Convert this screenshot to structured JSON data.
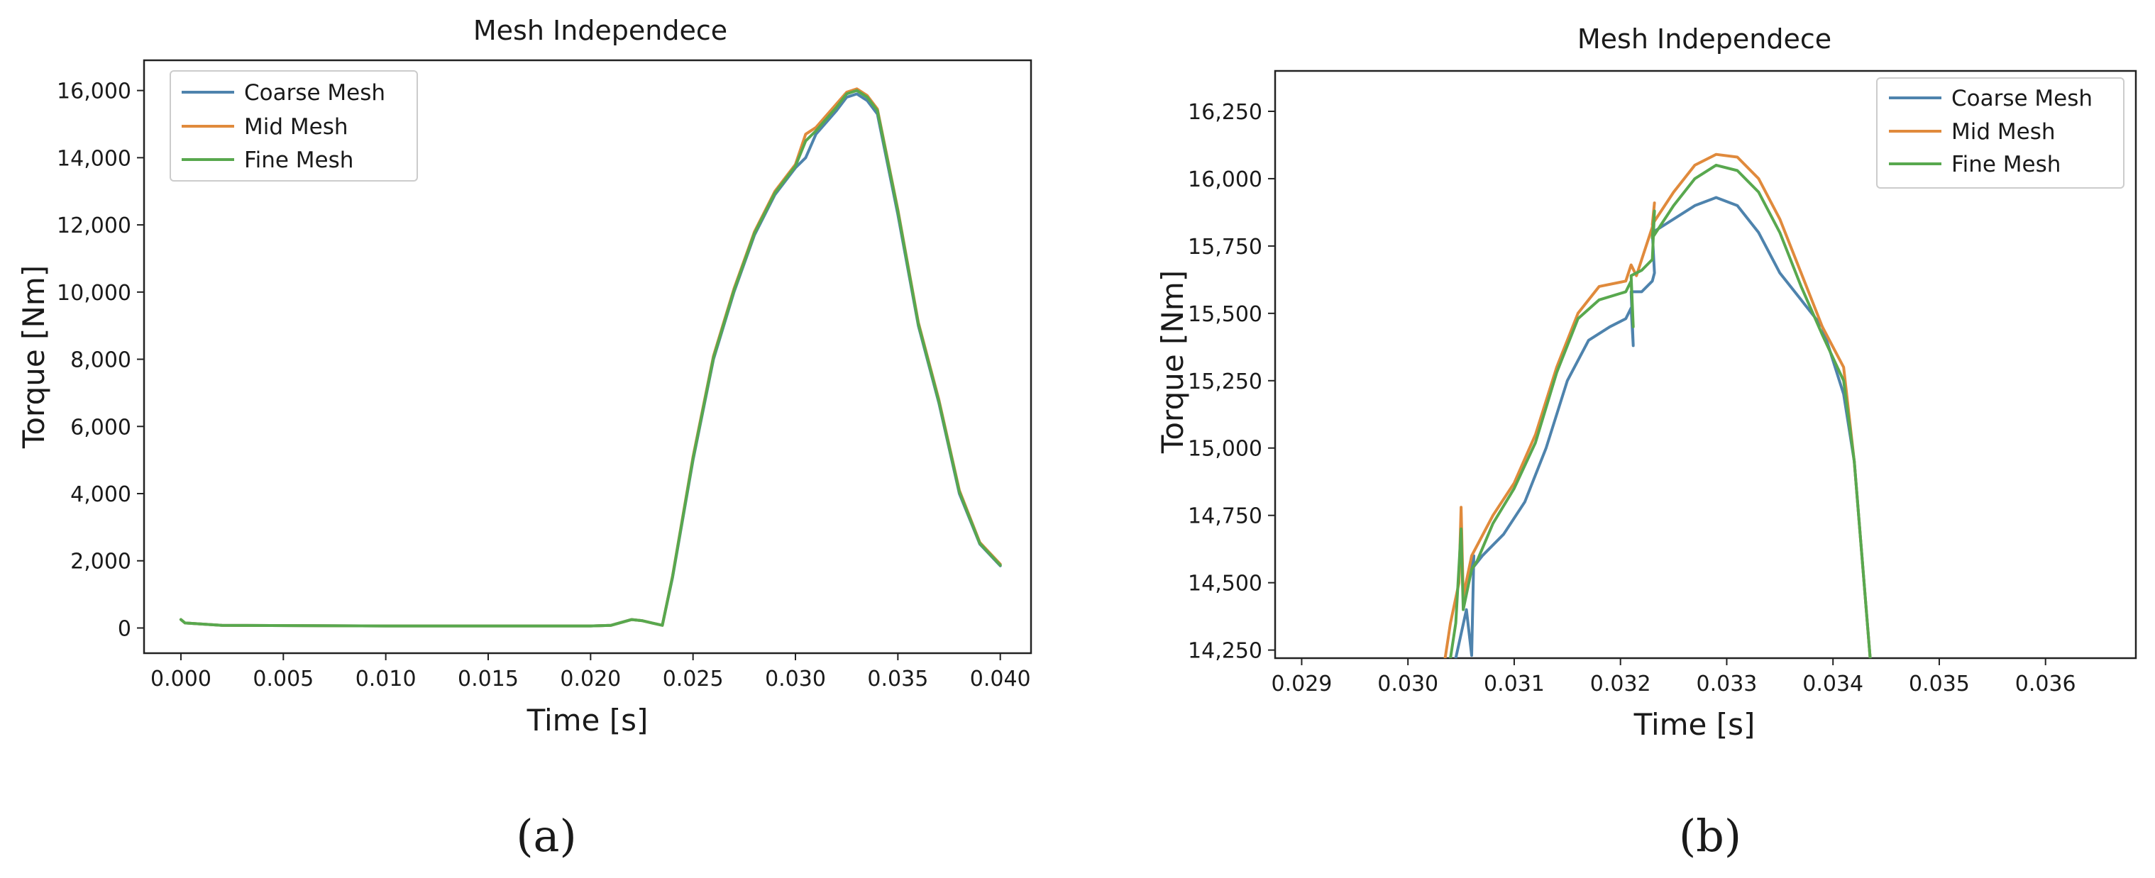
{
  "colors": {
    "coarse": "#4e83ad",
    "mid": "#e08a3c",
    "fine": "#58a84e"
  },
  "chart_data": [
    {
      "type": "line",
      "panel_label": "(a)",
      "title": "Mesh Independece",
      "xlabel": "Time [s]",
      "ylabel": "Torque [Nm]",
      "xlim": [
        -0.0018,
        0.0415
      ],
      "ylim": [
        -750,
        16900
      ],
      "grid": false,
      "legend_position": "top-left",
      "x_ticks": [
        0.0,
        0.005,
        0.01,
        0.015,
        0.02,
        0.025,
        0.03,
        0.035,
        0.04
      ],
      "x_tick_labels": [
        "0.000",
        "0.005",
        "0.010",
        "0.015",
        "0.020",
        "0.025",
        "0.030",
        "0.035",
        "0.040"
      ],
      "y_ticks": [
        0,
        2000,
        4000,
        6000,
        8000,
        10000,
        12000,
        14000,
        16000
      ],
      "y_tick_labels": [
        "0",
        "2,000",
        "4,000",
        "6,000",
        "8,000",
        "10,000",
        "12,000",
        "14,000",
        "16,000"
      ],
      "series": [
        {
          "name": "Coarse Mesh",
          "color_key": "coarse",
          "x": [
            0.0,
            0.0002,
            0.002,
            0.01,
            0.02,
            0.021,
            0.022,
            0.0225,
            0.023,
            0.0235,
            0.024,
            0.025,
            0.026,
            0.027,
            0.028,
            0.029,
            0.03,
            0.0305,
            0.031,
            0.032,
            0.0325,
            0.033,
            0.0335,
            0.034,
            0.035,
            0.036,
            0.037,
            0.038,
            0.039,
            0.04
          ],
          "y": [
            250,
            150,
            80,
            60,
            60,
            80,
            250,
            220,
            150,
            80,
            1500,
            5000,
            8000,
            10000,
            11700,
            12900,
            13700,
            14000,
            14700,
            15400,
            15800,
            15900,
            15700,
            15300,
            12300,
            9000,
            6700,
            4000,
            2500,
            1850
          ]
        },
        {
          "name": "Mid Mesh",
          "color_key": "mid",
          "x": [
            0.0,
            0.0002,
            0.002,
            0.01,
            0.02,
            0.021,
            0.022,
            0.0225,
            0.023,
            0.0235,
            0.024,
            0.025,
            0.026,
            0.027,
            0.028,
            0.029,
            0.03,
            0.0305,
            0.031,
            0.032,
            0.0325,
            0.033,
            0.0335,
            0.034,
            0.035,
            0.036,
            0.037,
            0.038,
            0.039,
            0.04
          ],
          "y": [
            250,
            150,
            80,
            60,
            60,
            80,
            250,
            220,
            150,
            80,
            1550,
            5100,
            8100,
            10100,
            11800,
            13000,
            13800,
            14700,
            14900,
            15600,
            15950,
            16050,
            15850,
            15450,
            12450,
            9100,
            6800,
            4100,
            2550,
            1900
          ]
        },
        {
          "name": "Fine Mesh",
          "color_key": "fine",
          "x": [
            0.0,
            0.0002,
            0.002,
            0.01,
            0.02,
            0.021,
            0.022,
            0.0225,
            0.023,
            0.0235,
            0.024,
            0.025,
            0.026,
            0.027,
            0.028,
            0.029,
            0.03,
            0.0305,
            0.031,
            0.032,
            0.0325,
            0.033,
            0.0335,
            0.034,
            0.035,
            0.036,
            0.037,
            0.038,
            0.039,
            0.04
          ],
          "y": [
            250,
            150,
            80,
            60,
            60,
            80,
            250,
            220,
            150,
            80,
            1530,
            5050,
            8050,
            10050,
            11750,
            12950,
            13750,
            14500,
            14800,
            15500,
            15900,
            16000,
            15800,
            15400,
            12400,
            9050,
            6750,
            4050,
            2520,
            1870
          ]
        }
      ]
    },
    {
      "type": "line",
      "panel_label": "(b)",
      "title": "Mesh Independece",
      "xlabel": "Time [s]",
      "ylabel": "Torque [Nm]",
      "xlim": [
        0.02875,
        0.03685
      ],
      "ylim": [
        14220,
        16400
      ],
      "grid": false,
      "legend_position": "top-right",
      "x_ticks": [
        0.029,
        0.03,
        0.031,
        0.032,
        0.033,
        0.034,
        0.035,
        0.036
      ],
      "x_tick_labels": [
        "0.029",
        "0.030",
        "0.031",
        "0.032",
        "0.033",
        "0.034",
        "0.035",
        "0.036"
      ],
      "y_ticks": [
        14250,
        14500,
        14750,
        15000,
        15250,
        15500,
        15750,
        16000,
        16250
      ],
      "y_tick_labels": [
        "14,250",
        "14,500",
        "14,750",
        "15,000",
        "15,250",
        "15,500",
        "15,750",
        "16,000",
        "16,250"
      ],
      "series": [
        {
          "name": "Coarse Mesh",
          "color_key": "coarse",
          "x": [
            0.03045,
            0.03055,
            0.0306,
            0.03062,
            0.0306,
            0.0307,
            0.0309,
            0.0311,
            0.0313,
            0.0315,
            0.0317,
            0.0319,
            0.03205,
            0.0321,
            0.03212,
            0.0321,
            0.0322,
            0.0323,
            0.03232,
            0.0323,
            0.0325,
            0.0327,
            0.0329,
            0.0331,
            0.0333,
            0.0335,
            0.0337,
            0.0339,
            0.0341,
            0.0342,
            0.03435
          ],
          "y": [
            14220,
            14400,
            14230,
            14600,
            14550,
            14600,
            14680,
            14800,
            15000,
            15250,
            15400,
            15450,
            15480,
            15520,
            15380,
            15580,
            15580,
            15620,
            15650,
            15800,
            15850,
            15900,
            15930,
            15900,
            15800,
            15650,
            15550,
            15450,
            15200,
            14950,
            14220
          ]
        },
        {
          "name": "Mid Mesh",
          "color_key": "mid",
          "x": [
            0.03035,
            0.0304,
            0.03048,
            0.0305,
            0.03052,
            0.0306,
            0.0308,
            0.031,
            0.0312,
            0.0314,
            0.0316,
            0.0318,
            0.03205,
            0.0321,
            0.03215,
            0.0322,
            0.0323,
            0.03232,
            0.0323,
            0.0325,
            0.0327,
            0.0329,
            0.0331,
            0.0333,
            0.0335,
            0.0337,
            0.0339,
            0.0341,
            0.0342,
            0.03435
          ],
          "y": [
            14220,
            14350,
            14500,
            14780,
            14450,
            14600,
            14750,
            14870,
            15050,
            15300,
            15500,
            15600,
            15620,
            15680,
            15640,
            15700,
            15820,
            15910,
            15830,
            15950,
            16050,
            16090,
            16080,
            16000,
            15850,
            15650,
            15450,
            15300,
            14950,
            14220
          ]
        },
        {
          "name": "Fine Mesh",
          "color_key": "fine",
          "x": [
            0.0304,
            0.03045,
            0.0305,
            0.03052,
            0.0306,
            0.03065,
            0.0308,
            0.031,
            0.0312,
            0.0314,
            0.0316,
            0.0318,
            0.03205,
            0.0321,
            0.03212,
            0.0321,
            0.0322,
            0.0323,
            0.03232,
            0.0323,
            0.0325,
            0.0327,
            0.0329,
            0.0331,
            0.0333,
            0.0335,
            0.0337,
            0.0339,
            0.0341,
            0.0342,
            0.03435
          ],
          "y": [
            14220,
            14350,
            14700,
            14400,
            14550,
            14580,
            14720,
            14850,
            15020,
            15280,
            15480,
            15550,
            15580,
            15620,
            15450,
            15640,
            15660,
            15700,
            15880,
            15780,
            15900,
            16000,
            16050,
            16030,
            15950,
            15800,
            15600,
            15420,
            15250,
            14950,
            14220
          ]
        }
      ]
    }
  ]
}
